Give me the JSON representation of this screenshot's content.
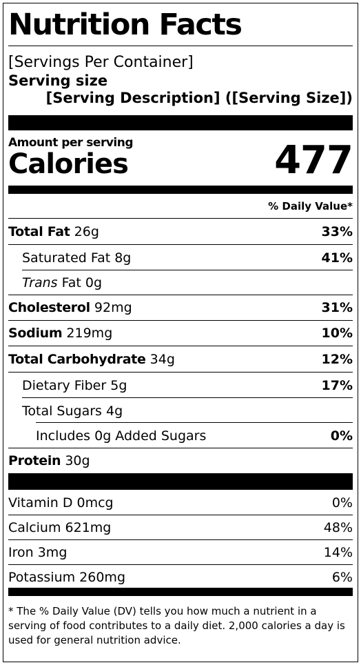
{
  "title": "Nutrition Facts",
  "servings_per_container": "[Servings Per Container]",
  "serving_size_label": "Serving size",
  "serving_description": "[Serving Description] ([Serving Size])",
  "amount_per_serving": "Amount per serving",
  "calories_label": "Calories",
  "calories_value": "477",
  "daily_value_header": "% Daily Value*",
  "nutrients": [
    {
      "name": "Total Fat",
      "amount": "26g",
      "dv": "33%"
    },
    {
      "name": "Saturated Fat",
      "amount": "8g",
      "dv": "41%"
    },
    {
      "name": "Trans",
      "name_suffix": "Fat",
      "amount": "0g",
      "dv": ""
    },
    {
      "name": "Cholesterol",
      "amount": "92mg",
      "dv": "31%"
    },
    {
      "name": "Sodium",
      "amount": "219mg",
      "dv": "10%"
    },
    {
      "name": "Total Carbohydrate",
      "amount": "34g",
      "dv": "12%"
    },
    {
      "name": "Dietary Fiber",
      "amount": "5g",
      "dv": "17%"
    },
    {
      "name": "Total Sugars",
      "amount": "4g",
      "dv": ""
    },
    {
      "name": "Includes 0g Added Sugars",
      "amount": "",
      "dv": "0%"
    },
    {
      "name": "Protein",
      "amount": "30g",
      "dv": ""
    }
  ],
  "vitamins": [
    {
      "name": "Vitamin D",
      "amount": "0mcg",
      "dv": "0%"
    },
    {
      "name": "Calcium",
      "amount": "621mg",
      "dv": "48%"
    },
    {
      "name": "Iron",
      "amount": "3mg",
      "dv": "14%"
    },
    {
      "name": "Potassium",
      "amount": "260mg",
      "dv": "6%"
    }
  ],
  "footnote": "* The % Daily Value (DV) tells you how much a nutrient in a serving of food contributes to a daily diet. 2,000 calories a day is used for general nutrition advice."
}
